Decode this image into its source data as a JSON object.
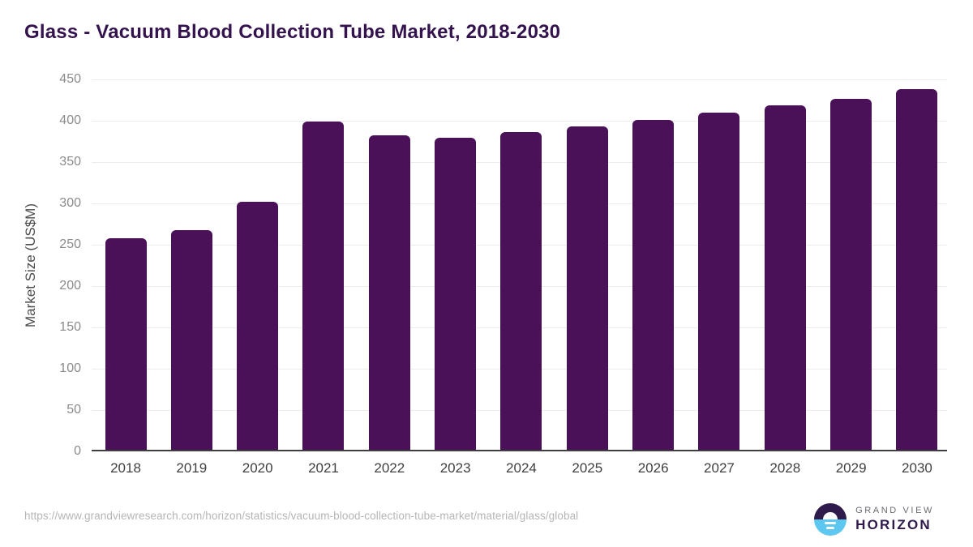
{
  "title": "Glass - Vacuum Blood Collection Tube Market, 2018-2030",
  "chart_data": {
    "type": "bar",
    "title": "Glass - Vacuum Blood Collection Tube Market, 2018-2030",
    "categories": [
      "2018",
      "2019",
      "2020",
      "2021",
      "2022",
      "2023",
      "2024",
      "2025",
      "2026",
      "2027",
      "2028",
      "2029",
      "2030"
    ],
    "values": [
      256,
      266,
      300,
      397,
      380,
      377,
      384,
      391,
      399,
      408,
      417,
      425,
      436
    ],
    "xlabel": "",
    "ylabel": "Market Size (US$M)",
    "ylim": [
      0,
      450
    ],
    "ytick_interval": 50,
    "yticks": [
      0,
      50,
      100,
      150,
      200,
      250,
      300,
      350,
      400,
      450
    ],
    "bar_color": "#4a1159",
    "grid": true,
    "legend": false
  },
  "footer": {
    "source_url": "https://www.grandviewresearch.com/horizon/statistics/vacuum-blood-collection-tube-market/material/glass/global",
    "logo": {
      "line1": "GRAND VIEW",
      "line2": "HORIZON"
    }
  },
  "colors": {
    "title_text": "#33124e",
    "bar": "#4a1159",
    "gridline": "#ececec",
    "axis_line": "#3f3f3f",
    "ytick_text": "#8b8b8b",
    "xtick_text": "#3f3f3f",
    "ylabel_text": "#4c4c4c",
    "url_text": "#b5b5b5",
    "logo_purple": "#2e1a4b",
    "logo_blue": "#5cc7f1"
  }
}
